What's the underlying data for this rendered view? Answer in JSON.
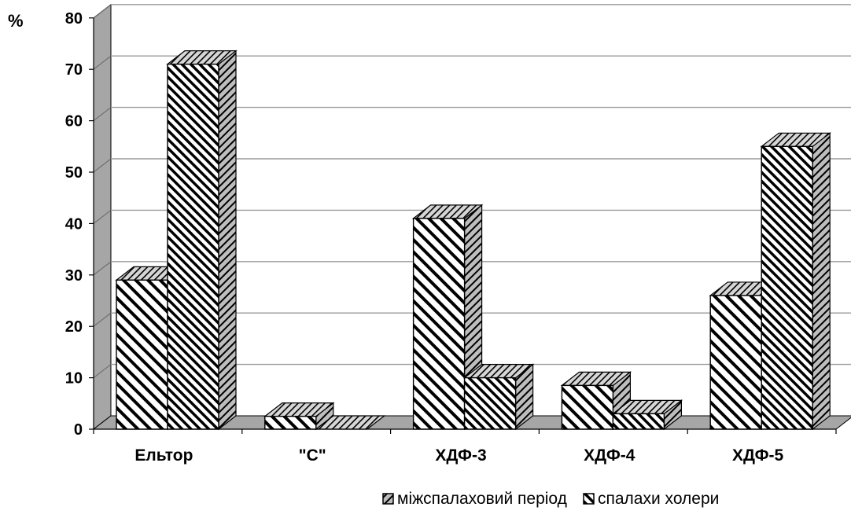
{
  "chart_data": {
    "type": "bar",
    "ylabel": "%",
    "ylim": [
      0,
      80
    ],
    "yticks": [
      "0",
      "10",
      "20",
      "30",
      "40",
      "50",
      "60",
      "70",
      "80"
    ],
    "grid": true,
    "legend_position": "bottom",
    "categories": [
      "Ельтор",
      "\"C\"",
      "ХДФ-3",
      "ХДФ-4",
      "ХДФ-5"
    ],
    "series": [
      {
        "name": "міжспалаховий період",
        "values": [
          29,
          2.5,
          41,
          8.5,
          26
        ]
      },
      {
        "name": "спалахи холери",
        "values": [
          71,
          0,
          10,
          3,
          55
        ]
      }
    ],
    "colors": {
      "bars": "#ffffff",
      "walls": "#a6a6a6",
      "grid": "#999999",
      "ink": "#000000"
    }
  }
}
